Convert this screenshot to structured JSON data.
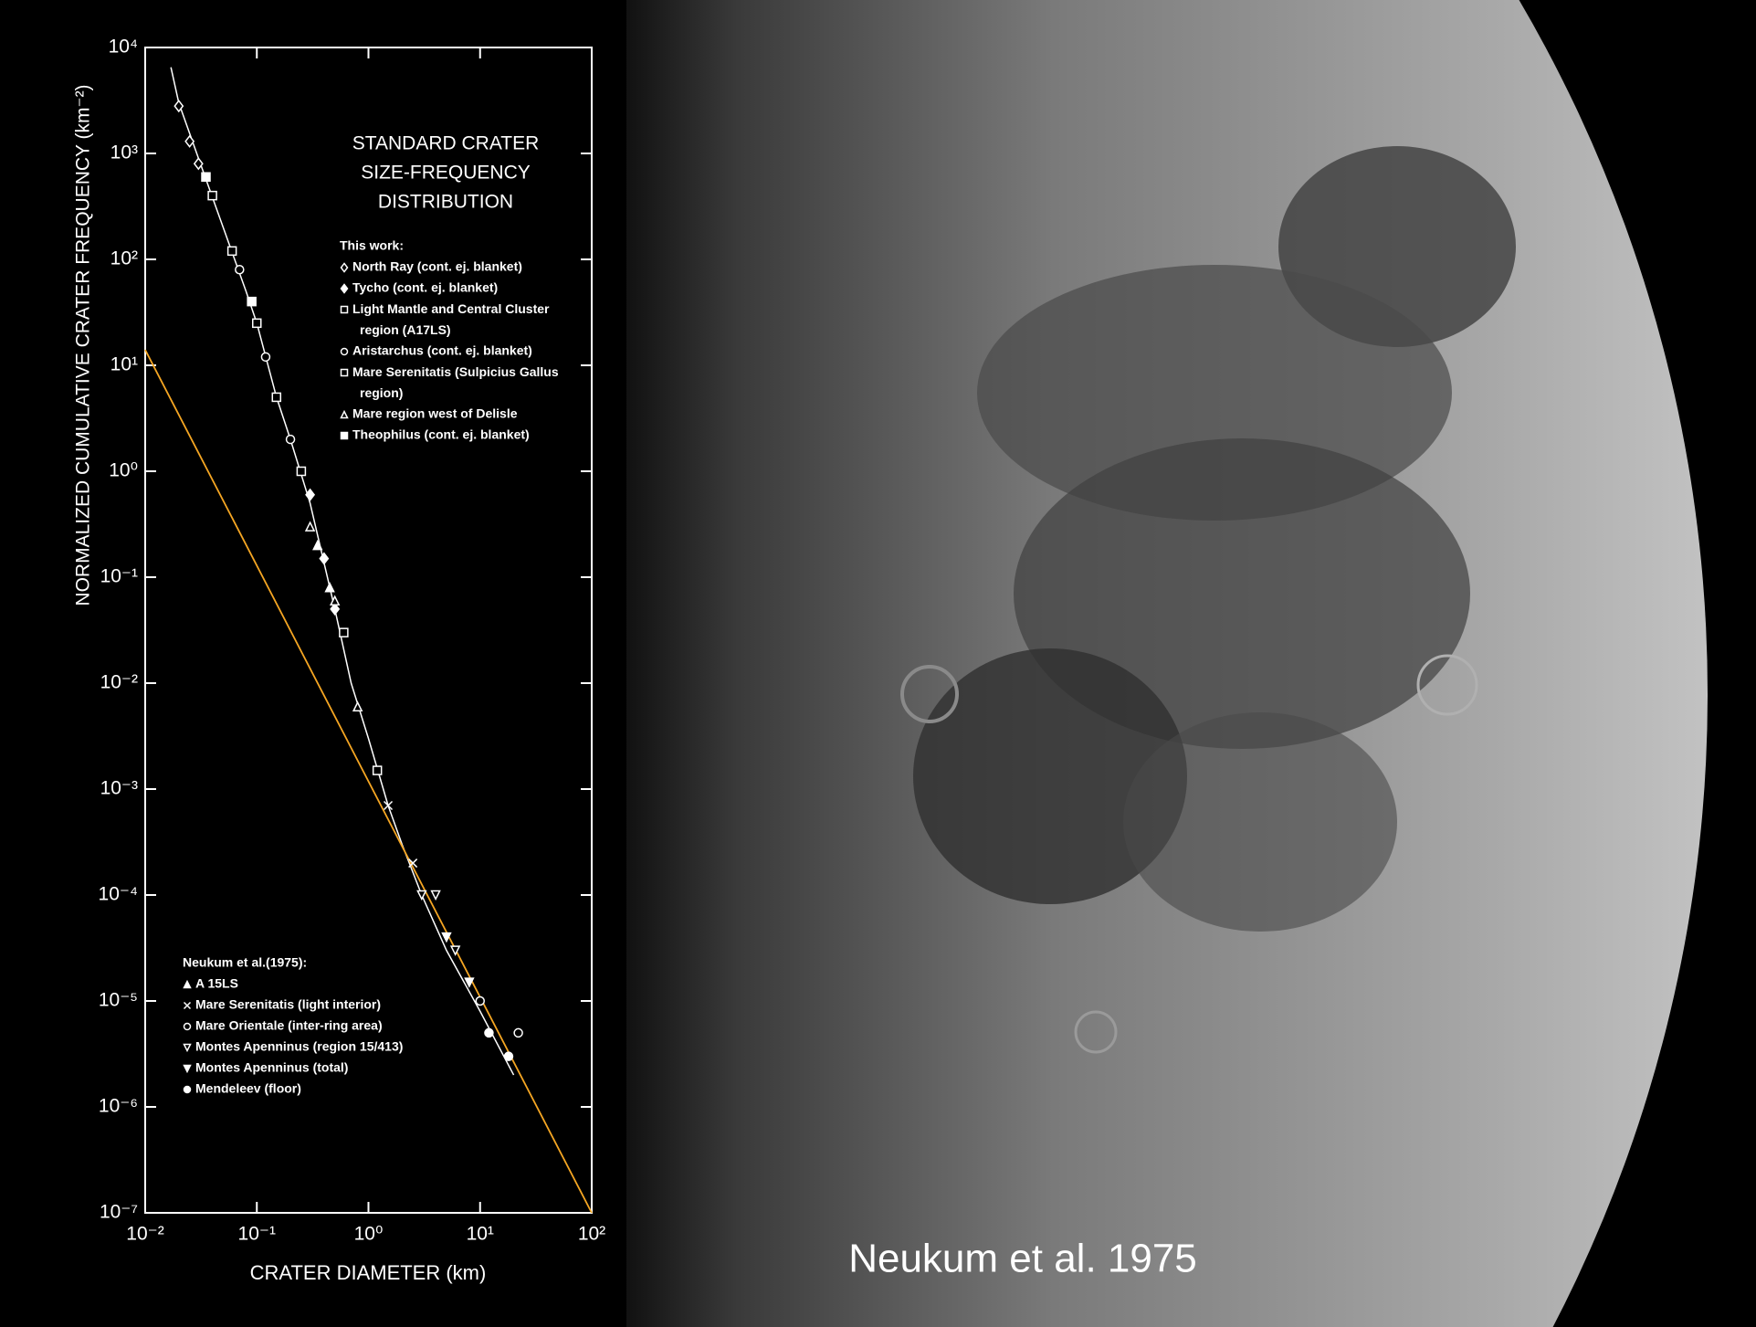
{
  "caption": "Neukum et al. 1975",
  "chart_data": {
    "type": "scatter",
    "title": [
      "STANDARD CRATER",
      "SIZE-FREQUENCY",
      "DISTRIBUTION"
    ],
    "x_label": "CRATER DIAMETER (km)",
    "y_label": "NORMALIZED CUMULATIVE CRATER FREQUENCY (km⁻²)",
    "log_x": true,
    "log_y": true,
    "xlim": [
      0.01,
      100
    ],
    "ylim": [
      1e-07,
      10000
    ],
    "xticks": [
      {
        "value": 0.01,
        "label": "10⁻²"
      },
      {
        "value": 0.1,
        "label": "10⁻¹"
      },
      {
        "value": 1,
        "label": "10⁰"
      },
      {
        "value": 10,
        "label": "10¹"
      },
      {
        "value": 100,
        "label": "10²"
      }
    ],
    "yticks": [
      {
        "value": 1e-07,
        "label": "10⁻⁷"
      },
      {
        "value": 1e-06,
        "label": "10⁻⁶"
      },
      {
        "value": 1e-05,
        "label": "10⁻⁵"
      },
      {
        "value": 0.0001,
        "label": "10⁻⁴"
      },
      {
        "value": 0.001,
        "label": "10⁻³"
      },
      {
        "value": 0.01,
        "label": "10⁻²"
      },
      {
        "value": 0.1,
        "label": "10⁻¹"
      },
      {
        "value": 1,
        "label": "10⁰"
      },
      {
        "value": 10,
        "label": "10¹"
      },
      {
        "value": 100,
        "label": "10²"
      },
      {
        "value": 1000,
        "label": "10³"
      },
      {
        "value": 10000,
        "label": "10⁴"
      }
    ],
    "legend_groups": [
      "This work:",
      "Neukum et al.(1975):"
    ],
    "production_curve": {
      "color": "#ffffff",
      "x": [
        0.017,
        0.02,
        0.03,
        0.05,
        0.08,
        0.1,
        0.15,
        0.2,
        0.3,
        0.5,
        0.7,
        1,
        1.5,
        2,
        3,
        5,
        10,
        20
      ],
      "values": [
        6500,
        3000,
        900,
        200,
        50,
        25,
        5,
        2,
        0.5,
        0.05,
        0.01,
        0.003,
        0.0007,
        0.0003,
        0.0001,
        3e-05,
        8e-06,
        2e-06
      ]
    },
    "fit_line": {
      "color": "#f5a623",
      "x": [
        0.01,
        100
      ],
      "values": [
        14,
        1e-07
      ]
    },
    "series": [
      {
        "name": "North Ray (cont. ej. blanket)",
        "group": 0,
        "marker": "diamond-open",
        "color": "#ffffff",
        "x": [
          0.02,
          0.025,
          0.03
        ],
        "values": [
          2800,
          1300,
          800
        ]
      },
      {
        "name": "Tycho (cont. ej. blanket)",
        "group": 0,
        "marker": "diamond",
        "color": "#ffffff",
        "x": [
          0.3,
          0.4,
          0.5
        ],
        "values": [
          0.6,
          0.15,
          0.05
        ]
      },
      {
        "name": "Light Mantle and Central Cluster region (A17LS)",
        "group": 0,
        "marker": "square-dot",
        "color": "#ffffff",
        "x": [
          0.04,
          0.06,
          0.1,
          0.15
        ],
        "values": [
          400,
          120,
          25,
          5
        ]
      },
      {
        "name": "Aristarchus (cont. ej. blanket)",
        "group": 0,
        "marker": "circle-dot",
        "color": "#ffffff",
        "x": [
          0.07,
          0.12,
          0.2
        ],
        "values": [
          80,
          12,
          2
        ]
      },
      {
        "name": "Mare Serenitatis (Sulpicius Gallus region)",
        "group": 0,
        "marker": "square-open",
        "color": "#ffffff",
        "x": [
          0.25,
          0.6,
          1.2
        ],
        "values": [
          1,
          0.03,
          0.0015
        ]
      },
      {
        "name": "Mare region west of Delisle",
        "group": 0,
        "marker": "triangle-open",
        "color": "#ffffff",
        "x": [
          0.3,
          0.5,
          0.8
        ],
        "values": [
          0.3,
          0.06,
          0.006
        ]
      },
      {
        "name": "Theophilus (cont. ej. blanket)",
        "group": 0,
        "marker": "square",
        "color": "#ffffff",
        "x": [
          0.035,
          0.09
        ],
        "values": [
          600,
          40
        ]
      },
      {
        "name": "A 15LS",
        "group": 1,
        "marker": "triangle",
        "color": "#ffffff",
        "x": [
          0.35,
          0.45
        ],
        "values": [
          0.2,
          0.08
        ]
      },
      {
        "name": "Mare Serenitatis (light interior)",
        "group": 1,
        "marker": "x",
        "color": "#ffffff",
        "x": [
          1.5,
          2.5
        ],
        "values": [
          0.0007,
          0.0002
        ]
      },
      {
        "name": "Mare Orientale (inter-ring area)",
        "group": 1,
        "marker": "circle-open",
        "color": "#ffffff",
        "x": [
          10,
          22
        ],
        "values": [
          1e-05,
          5e-06
        ]
      },
      {
        "name": "Montes Apenninus (region 15/413)",
        "group": 1,
        "marker": "triangle-down-open",
        "color": "#ffffff",
        "x": [
          3,
          4,
          6
        ],
        "values": [
          0.0001,
          0.0001,
          3e-05
        ]
      },
      {
        "name": "Montes Apenninus (total)",
        "group": 1,
        "marker": "triangle-down",
        "color": "#ffffff",
        "x": [
          5,
          8
        ],
        "values": [
          4e-05,
          1.5e-05
        ]
      },
      {
        "name": "Mendeleev (floor)",
        "group": 1,
        "marker": "circle",
        "color": "#ffffff",
        "x": [
          12,
          18
        ],
        "values": [
          5e-06,
          3e-06
        ]
      }
    ]
  }
}
